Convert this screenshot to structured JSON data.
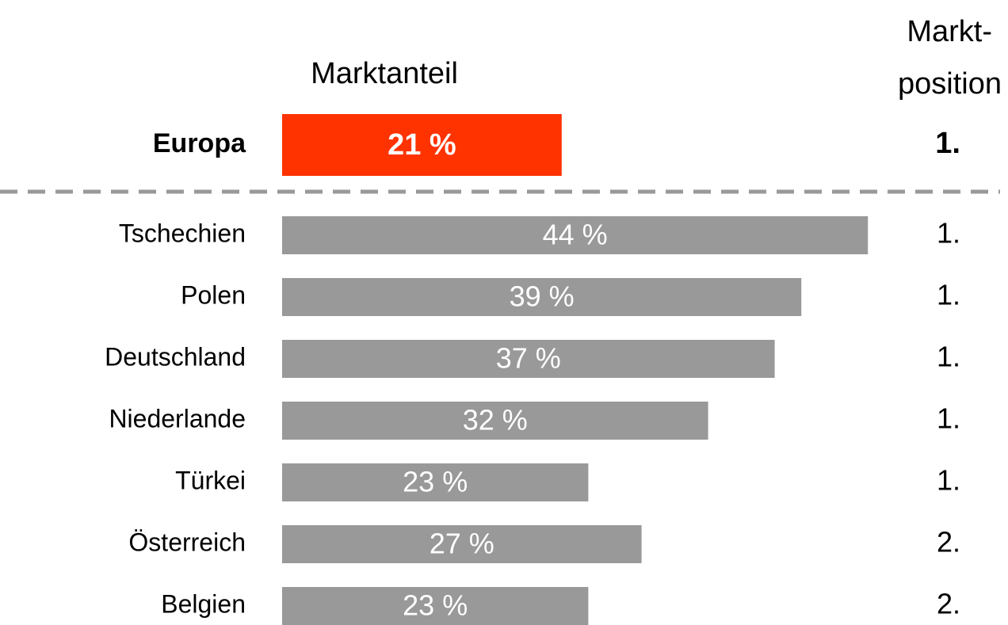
{
  "chart_data": {
    "type": "bar",
    "value_header": "Marktanteil",
    "position_header": [
      "Markt-",
      "position"
    ],
    "total": {
      "name": "Europa",
      "value": 21,
      "value_label": "21 %",
      "position": "1.",
      "color": "#ff3300"
    },
    "categories": [
      "Tschechien",
      "Polen",
      "Deutschland",
      "Niederlande",
      "Türkei",
      "Österreich",
      "Belgien"
    ],
    "values": [
      44,
      39,
      37,
      32,
      23,
      27,
      23
    ],
    "value_labels": [
      "44 %",
      "39 %",
      "37 %",
      "32 %",
      "23 %",
      "27 %",
      "23 %"
    ],
    "positions": [
      "1.",
      "1.",
      "1.",
      "1.",
      "1.",
      "2.",
      "2."
    ],
    "color": "#999999",
    "separator_color": "#999999"
  }
}
